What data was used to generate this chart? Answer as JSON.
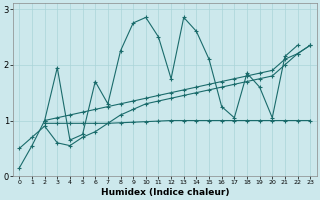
{
  "title": "",
  "xlabel": "Humidex (Indice chaleur)",
  "background_color": "#cce8ec",
  "line_color": "#1a6b6b",
  "xlim": [
    -0.5,
    23.5
  ],
  "ylim": [
    0,
    3.1
  ],
  "xticks": [
    0,
    1,
    2,
    3,
    4,
    5,
    6,
    7,
    8,
    9,
    10,
    11,
    12,
    13,
    14,
    15,
    16,
    17,
    18,
    19,
    20,
    21,
    22,
    23
  ],
  "yticks": [
    0,
    1,
    2,
    3
  ],
  "s1_x": [
    0,
    1,
    2,
    3,
    4,
    5,
    6,
    7,
    8,
    9,
    10,
    11,
    12,
    13,
    14,
    15,
    16,
    17,
    18,
    19,
    20,
    21,
    22
  ],
  "s1_y": [
    0.15,
    0.55,
    1.0,
    1.95,
    0.65,
    0.75,
    1.7,
    1.3,
    2.25,
    2.75,
    2.85,
    2.5,
    1.75,
    2.85,
    2.6,
    2.1,
    1.25,
    1.05,
    1.85,
    1.6,
    1.05,
    2.15,
    2.35
  ],
  "s2_x": [
    2,
    3,
    4,
    5,
    6,
    7,
    8,
    9,
    10,
    11,
    12,
    13,
    14,
    15,
    16,
    17,
    18,
    19,
    20,
    21,
    22,
    23
  ],
  "s2_y": [
    1.0,
    1.05,
    1.1,
    1.15,
    1.2,
    1.25,
    1.3,
    1.35,
    1.4,
    1.45,
    1.5,
    1.55,
    1.6,
    1.65,
    1.7,
    1.75,
    1.8,
    1.85,
    1.9,
    2.1,
    2.2,
    2.35
  ],
  "s3_x": [
    2,
    3,
    4,
    5,
    6,
    7,
    8,
    9,
    10,
    11,
    12,
    13,
    14,
    15,
    16,
    17,
    18,
    19,
    20,
    21,
    22,
    23
  ],
  "s3_y": [
    0.95,
    0.95,
    0.95,
    0.95,
    0.95,
    0.95,
    0.96,
    0.97,
    0.98,
    0.99,
    1.0,
    1.0,
    1.0,
    1.0,
    1.0,
    1.0,
    1.0,
    1.0,
    1.0,
    1.0,
    1.0,
    1.0
  ],
  "s4_x": [
    0,
    1,
    2,
    3,
    4,
    5,
    6,
    7,
    8,
    9,
    10,
    11,
    12,
    13,
    14,
    15,
    16,
    17,
    18,
    19,
    20,
    21,
    22,
    23
  ],
  "s4_y": [
    0.5,
    0.7,
    0.9,
    0.6,
    0.55,
    0.7,
    0.8,
    0.95,
    1.1,
    1.2,
    1.3,
    1.35,
    1.4,
    1.45,
    1.5,
    1.55,
    1.6,
    1.65,
    1.7,
    1.75,
    1.8,
    2.0,
    2.2,
    2.35
  ],
  "xtick_fontsize": 4.5,
  "ytick_fontsize": 6,
  "xlabel_fontsize": 6.5,
  "grid_color": "#aad4d8",
  "spine_color": "#888888"
}
